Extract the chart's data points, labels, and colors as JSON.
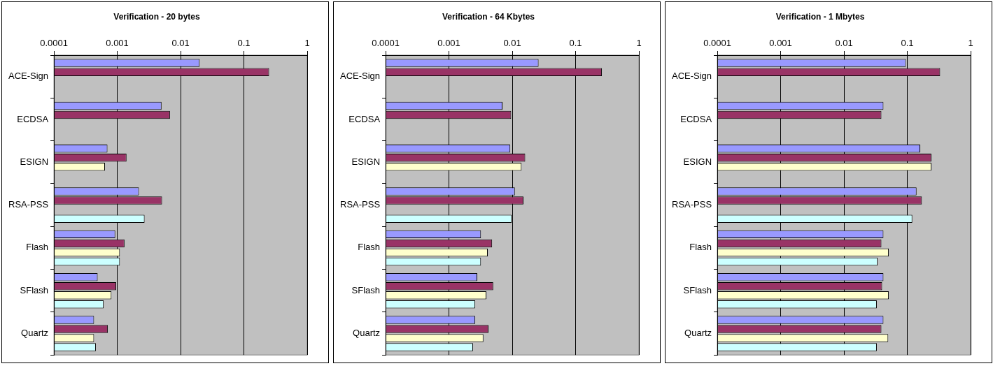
{
  "chart_data": [
    {
      "type": "bar",
      "orientation": "horizontal",
      "title": "Verification - 20 bytes",
      "categories": [
        "ACE-Sign",
        "ECDSA",
        "ESIGN",
        "RSA-PSS",
        "Flash",
        "SFlash",
        "Quartz"
      ],
      "log": "x",
      "grid": "x",
      "xlim": [
        0.0001,
        1
      ],
      "xticks": [
        0.0001,
        0.001,
        0.01,
        0.1,
        1
      ],
      "series": [
        {
          "color": "#9999ff",
          "values": [
            0.02,
            0.005,
            0.0007,
            0.0022,
            0.00093,
            0.00049,
            0.00043
          ]
        },
        {
          "color": "#993366",
          "values": [
            0.25,
            0.0068,
            0.0014,
            0.0051,
            0.0013,
            0.00096,
            0.00071
          ]
        },
        {
          "color": "#ffffcc",
          "values": [
            null,
            null,
            0.00064,
            null,
            0.0011,
            0.00081,
            0.00043
          ]
        },
        {
          "color": "#ccffff",
          "values": [
            null,
            null,
            null,
            0.0027,
            0.0011,
            0.00061,
            0.00046
          ]
        }
      ]
    },
    {
      "type": "bar",
      "orientation": "horizontal",
      "title": "Verification - 64 Kbytes",
      "categories": [
        "ACE-Sign",
        "ECDSA",
        "ESIGN",
        "RSA-PSS",
        "Flash",
        "SFlash",
        "Quartz"
      ],
      "log": "x",
      "grid": "x",
      "xlim": [
        0.0001,
        1
      ],
      "xticks": [
        0.0001,
        0.001,
        0.01,
        0.1,
        1
      ],
      "series": [
        {
          "color": "#9999ff",
          "values": [
            0.026,
            0.007,
            0.0093,
            0.011,
            0.0032,
            0.0028,
            0.0026
          ]
        },
        {
          "color": "#993366",
          "values": [
            0.26,
            0.0096,
            0.016,
            0.015,
            0.0048,
            0.005,
            0.0042
          ]
        },
        {
          "color": "#ffffcc",
          "values": [
            null,
            null,
            0.014,
            null,
            0.0041,
            0.0039,
            0.0035
          ]
        },
        {
          "color": "#ccffff",
          "values": [
            null,
            null,
            null,
            0.0098,
            0.0032,
            0.0026,
            0.0024
          ]
        }
      ]
    },
    {
      "type": "bar",
      "orientation": "horizontal",
      "title": "Verification - 1 Mbytes",
      "categories": [
        "ACE-Sign",
        "ECDSA",
        "ESIGN",
        "RSA-PSS",
        "Flash",
        "SFlash",
        "Quartz"
      ],
      "log": "x",
      "grid": "x",
      "xlim": [
        0.0001,
        1
      ],
      "xticks": [
        0.0001,
        0.001,
        0.01,
        0.1,
        1
      ],
      "series": [
        {
          "color": "#9999ff",
          "values": [
            0.095,
            0.042,
            0.16,
            0.14,
            0.042,
            0.042,
            0.042
          ]
        },
        {
          "color": "#993366",
          "values": [
            0.33,
            0.039,
            0.24,
            0.17,
            0.039,
            0.04,
            0.039
          ]
        },
        {
          "color": "#ffffcc",
          "values": [
            null,
            null,
            0.24,
            null,
            0.051,
            0.051,
            0.05
          ]
        },
        {
          "color": "#ccffff",
          "values": [
            null,
            null,
            null,
            0.12,
            0.034,
            0.033,
            0.033
          ]
        }
      ]
    }
  ]
}
